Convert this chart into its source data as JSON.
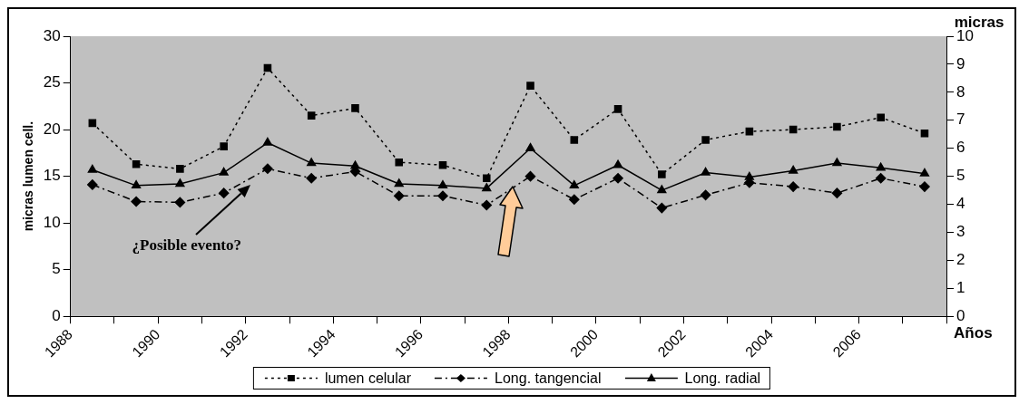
{
  "chart_data": {
    "type": "line",
    "ylabel": "micras lumen cell.",
    "y2label": "micras",
    "xlabel": "Años",
    "x": [
      1988.5,
      1989.5,
      1990.5,
      1991.5,
      1992.5,
      1993.5,
      1994.5,
      1995.5,
      1996.5,
      1997.5,
      1998.5,
      1999.5,
      2000.5,
      2001.5,
      2002.5,
      2003.5,
      2004.5,
      2005.5,
      2006.5,
      2007.5
    ],
    "xlim": [
      1988,
      2008
    ],
    "xticks": [
      1988,
      {
        "value": 1989,
        "label": null
      },
      1990,
      {
        "value": 1991,
        "label": null
      },
      1992,
      {
        "value": 1993,
        "label": null
      },
      1994,
      {
        "value": 1995,
        "label": null
      },
      1996,
      {
        "value": 1997,
        "label": null
      },
      1998,
      {
        "value": 1999,
        "label": null
      },
      2000,
      {
        "value": 2001,
        "label": null
      },
      2002,
      {
        "value": 2003,
        "label": null
      },
      2004,
      {
        "value": 2005,
        "label": null
      },
      2006,
      {
        "value": 2007,
        "label": null
      },
      {
        "value": 2008,
        "label": null
      }
    ],
    "ylim": [
      0,
      30
    ],
    "yticks": [
      0,
      5,
      10,
      15,
      20,
      25,
      30
    ],
    "y2lim": [
      0,
      10
    ],
    "y2ticks": [
      0,
      1,
      2,
      3,
      4,
      5,
      6,
      7,
      8,
      9,
      10
    ],
    "series": [
      {
        "name": "lumen celular",
        "color": "#000000",
        "marker": "square",
        "line_style": "dotted",
        "values": [
          20.7,
          16.3,
          15.8,
          18.2,
          26.6,
          21.5,
          22.3,
          16.5,
          16.2,
          14.8,
          24.7,
          18.9,
          22.2,
          15.2,
          18.9,
          19.8,
          20.0,
          20.3,
          21.3,
          19.6
        ]
      },
      {
        "name": "Long. tangencial",
        "color": "#000000",
        "marker": "diamond",
        "line_style": "dashed",
        "axis": "y2",
        "values": [
          4.7,
          4.1,
          4.07,
          4.4,
          5.27,
          4.93,
          5.17,
          4.3,
          4.3,
          3.97,
          5.0,
          4.17,
          4.93,
          3.87,
          4.33,
          4.77,
          4.63,
          4.4,
          4.93,
          4.63
        ]
      },
      {
        "name": "Long. radial",
        "color": "#000000",
        "marker": "triangle",
        "line_style": "solid",
        "axis": "y2",
        "values": [
          5.23,
          4.67,
          4.73,
          5.13,
          6.2,
          5.47,
          5.37,
          4.73,
          4.67,
          4.57,
          6.0,
          4.67,
          5.4,
          4.5,
          5.13,
          4.97,
          5.2,
          5.47,
          5.3,
          5.1
        ]
      }
    ],
    "annotations": [
      "¿Posible evento?"
    ],
    "grid": false,
    "legend": "bottom"
  }
}
